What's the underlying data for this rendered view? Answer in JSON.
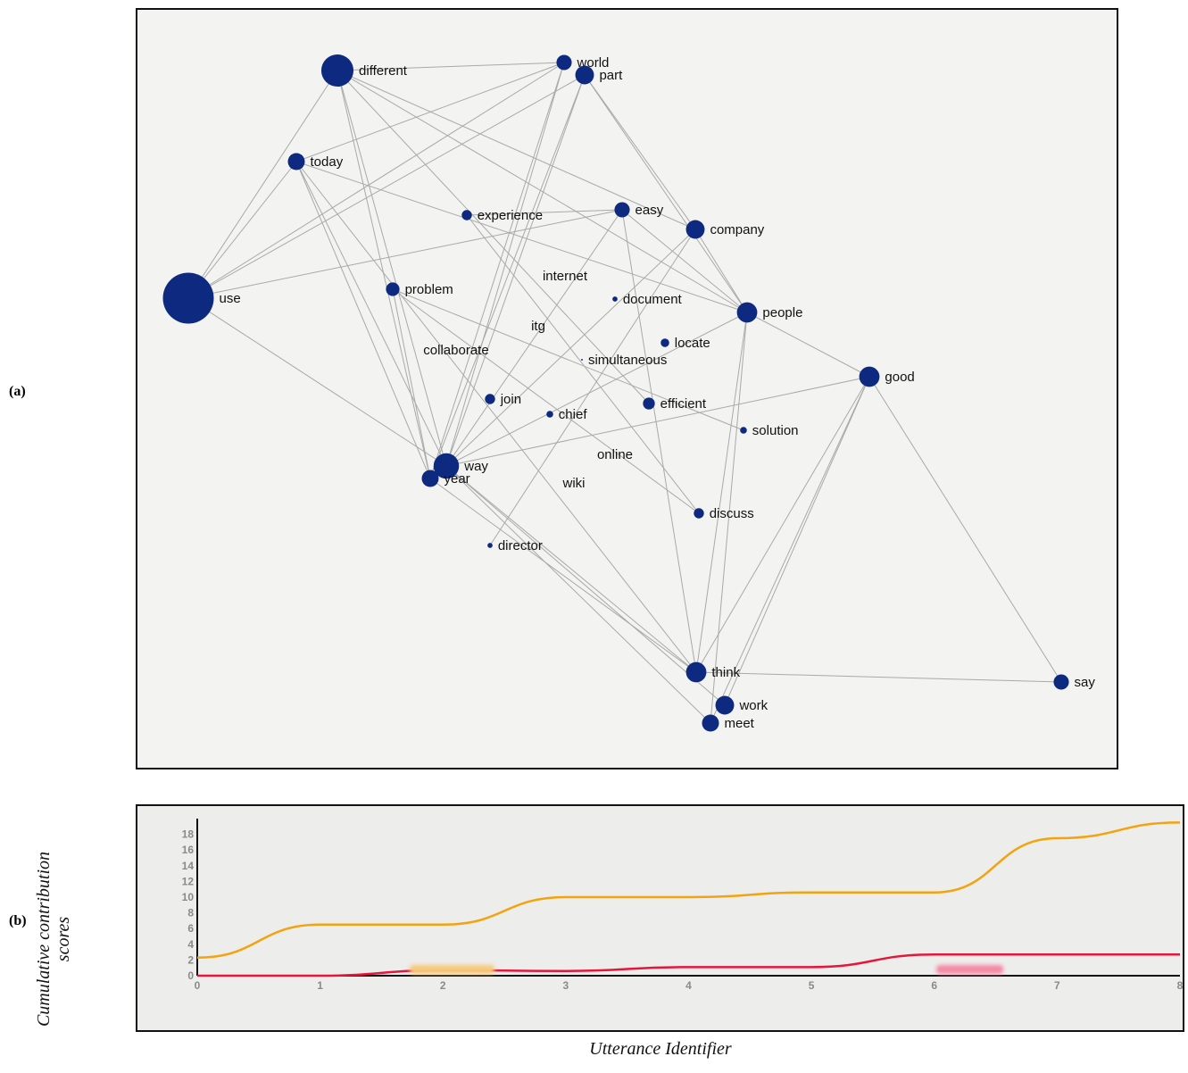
{
  "panels": {
    "a": "(a)",
    "b": "(b)"
  },
  "colors": {
    "node": "#0d2a80",
    "edge": "#a9a9a9",
    "series_orange": "#f2a30f",
    "series_red": "#e8153a",
    "axis": "#111111"
  },
  "graph": {
    "nodes": [
      {
        "id": "use",
        "label": "use",
        "weight": 30
      },
      {
        "id": "different",
        "label": "different",
        "weight": 19
      },
      {
        "id": "world",
        "label": "world",
        "weight": 9
      },
      {
        "id": "part",
        "label": "part",
        "weight": 11
      },
      {
        "id": "today",
        "label": "today",
        "weight": 10
      },
      {
        "id": "experience",
        "label": "experience",
        "weight": 6
      },
      {
        "id": "easy",
        "label": "easy",
        "weight": 9
      },
      {
        "id": "company",
        "label": "company",
        "weight": 11
      },
      {
        "id": "internet",
        "label": "internet",
        "weight": 0
      },
      {
        "id": "document",
        "label": "document",
        "weight": 3
      },
      {
        "id": "problem",
        "label": "problem",
        "weight": 8
      },
      {
        "id": "people",
        "label": "people",
        "weight": 12
      },
      {
        "id": "itg",
        "label": "itg",
        "weight": 0
      },
      {
        "id": "locate",
        "label": "locate",
        "weight": 5
      },
      {
        "id": "collaborate",
        "label": "collaborate",
        "weight": 0
      },
      {
        "id": "simultaneous",
        "label": "simultaneous",
        "weight": 1
      },
      {
        "id": "good",
        "label": "good",
        "weight": 12
      },
      {
        "id": "join",
        "label": "join",
        "weight": 6
      },
      {
        "id": "chief",
        "label": "chief",
        "weight": 4
      },
      {
        "id": "efficient",
        "label": "efficient",
        "weight": 7
      },
      {
        "id": "solution",
        "label": "solution",
        "weight": 4
      },
      {
        "id": "online",
        "label": "online",
        "weight": 0
      },
      {
        "id": "way",
        "label": "way",
        "weight": 15
      },
      {
        "id": "year",
        "label": "year",
        "weight": 10
      },
      {
        "id": "wiki",
        "label": "wiki",
        "weight": 0
      },
      {
        "id": "discuss",
        "label": "discuss",
        "weight": 6
      },
      {
        "id": "director",
        "label": "director",
        "weight": 3
      },
      {
        "id": "think",
        "label": "think",
        "weight": 12
      },
      {
        "id": "say",
        "label": "say",
        "weight": 9
      },
      {
        "id": "work",
        "label": "work",
        "weight": 11
      },
      {
        "id": "meet",
        "label": "meet",
        "weight": 10
      }
    ],
    "edges": [
      [
        "use",
        "different"
      ],
      [
        "use",
        "today"
      ],
      [
        "use",
        "world"
      ],
      [
        "use",
        "part"
      ],
      [
        "use",
        "easy"
      ],
      [
        "use",
        "way"
      ],
      [
        "different",
        "world"
      ],
      [
        "different",
        "people"
      ],
      [
        "different",
        "company"
      ],
      [
        "different",
        "way"
      ],
      [
        "different",
        "year"
      ],
      [
        "different",
        "efficient"
      ],
      [
        "world",
        "way"
      ],
      [
        "world",
        "year"
      ],
      [
        "world",
        "today"
      ],
      [
        "part",
        "way"
      ],
      [
        "part",
        "year"
      ],
      [
        "part",
        "people"
      ],
      [
        "part",
        "company"
      ],
      [
        "today",
        "people"
      ],
      [
        "today",
        "way"
      ],
      [
        "today",
        "year"
      ],
      [
        "today",
        "think"
      ],
      [
        "experience",
        "easy"
      ],
      [
        "experience",
        "discuss"
      ],
      [
        "easy",
        "way"
      ],
      [
        "easy",
        "people"
      ],
      [
        "easy",
        "think"
      ],
      [
        "company",
        "way"
      ],
      [
        "company",
        "people"
      ],
      [
        "company",
        "director"
      ],
      [
        "problem",
        "year"
      ],
      [
        "problem",
        "solution"
      ],
      [
        "problem",
        "discuss"
      ],
      [
        "people",
        "way"
      ],
      [
        "people",
        "good"
      ],
      [
        "people",
        "think"
      ],
      [
        "people",
        "meet"
      ],
      [
        "good",
        "way"
      ],
      [
        "good",
        "think"
      ],
      [
        "good",
        "work"
      ],
      [
        "good",
        "meet"
      ],
      [
        "good",
        "say"
      ],
      [
        "way",
        "think"
      ],
      [
        "way",
        "work"
      ],
      [
        "way",
        "meet"
      ],
      [
        "year",
        "think"
      ],
      [
        "think",
        "say"
      ]
    ]
  },
  "chart_data": {
    "type": "line",
    "title": "",
    "xlabel": "Utterance Identifier",
    "ylabel": [
      "Cumulative contribution",
      "scores"
    ],
    "xlim": [
      0,
      8
    ],
    "ylim": [
      0,
      20
    ],
    "xticks": [
      0,
      1,
      2,
      3,
      4,
      5,
      6,
      7,
      8
    ],
    "yticks": [
      0,
      2,
      4,
      6,
      8,
      10,
      12,
      14,
      16,
      18
    ],
    "grid": false,
    "series": [
      {
        "color": "orange",
        "x": [
          0,
          1,
          2,
          3,
          4,
          5,
          6,
          7,
          8
        ],
        "values": [
          2.3,
          6.5,
          6.5,
          10.0,
          10.0,
          10.6,
          10.6,
          17.5,
          19.5
        ]
      },
      {
        "color": "red",
        "x": [
          0,
          1,
          2,
          3,
          4,
          5,
          6,
          7,
          8
        ],
        "values": [
          0.0,
          0.0,
          0.7,
          0.6,
          1.1,
          1.1,
          2.7,
          2.7,
          2.7
        ]
      }
    ]
  }
}
